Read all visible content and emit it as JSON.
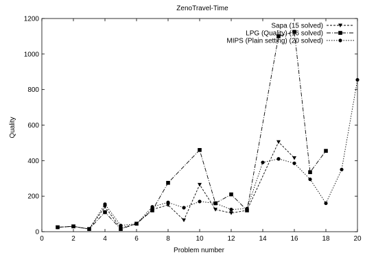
{
  "chart_data": {
    "type": "line",
    "title": "ZenoTravel-Time",
    "xlabel": "Problem number",
    "ylabel": "Quality",
    "xlim": [
      0,
      20
    ],
    "ylim": [
      0,
      1200
    ],
    "xticks": [
      0,
      2,
      4,
      6,
      8,
      10,
      12,
      14,
      16,
      18,
      20
    ],
    "yticks": [
      0,
      200,
      400,
      600,
      800,
      1000,
      1200
    ],
    "grid": false,
    "legend_position": "top-right",
    "series": [
      {
        "name": "Sapa (15 solved)",
        "marker": "triangle-down",
        "dash": "3,2",
        "points": [
          [
            1,
            25
          ],
          [
            2,
            30
          ],
          [
            3,
            15
          ],
          [
            4,
            140
          ],
          [
            5,
            20
          ],
          [
            6,
            45
          ],
          [
            7,
            125
          ],
          [
            8,
            150
          ],
          [
            9,
            65
          ],
          [
            10,
            265
          ],
          [
            11,
            125
          ],
          [
            12,
            105
          ],
          [
            13,
            120
          ],
          [
            15,
            505
          ],
          [
            16,
            415
          ]
        ]
      },
      {
        "name": "LPG (Quality) (16 solved)",
        "marker": "square",
        "dash": "6,2,1,2",
        "points": [
          [
            1,
            25
          ],
          [
            2,
            30
          ],
          [
            3,
            15
          ],
          [
            4,
            110
          ],
          [
            5,
            15
          ],
          [
            6,
            45
          ],
          [
            7,
            120
          ],
          [
            8,
            275
          ],
          [
            10,
            460
          ],
          [
            11,
            160
          ],
          [
            12,
            210
          ],
          [
            13,
            120
          ],
          [
            15,
            1100
          ],
          [
            16,
            1125
          ],
          [
            17,
            335
          ],
          [
            18,
            455
          ]
        ]
      },
      {
        "name": "MIPS (Plain setting) (20 solved)",
        "marker": "circle",
        "dash": "1.5,2",
        "points": [
          [
            1,
            25
          ],
          [
            2,
            30
          ],
          [
            3,
            15
          ],
          [
            4,
            155
          ],
          [
            5,
            35
          ],
          [
            6,
            45
          ],
          [
            7,
            140
          ],
          [
            8,
            165
          ],
          [
            9,
            135
          ],
          [
            10,
            170
          ],
          [
            11,
            160
          ],
          [
            12,
            125
          ],
          [
            13,
            130
          ],
          [
            14,
            390
          ],
          [
            15,
            410
          ],
          [
            16,
            385
          ],
          [
            17,
            295
          ],
          [
            18,
            160
          ],
          [
            19,
            350
          ],
          [
            20,
            855
          ]
        ]
      }
    ]
  }
}
